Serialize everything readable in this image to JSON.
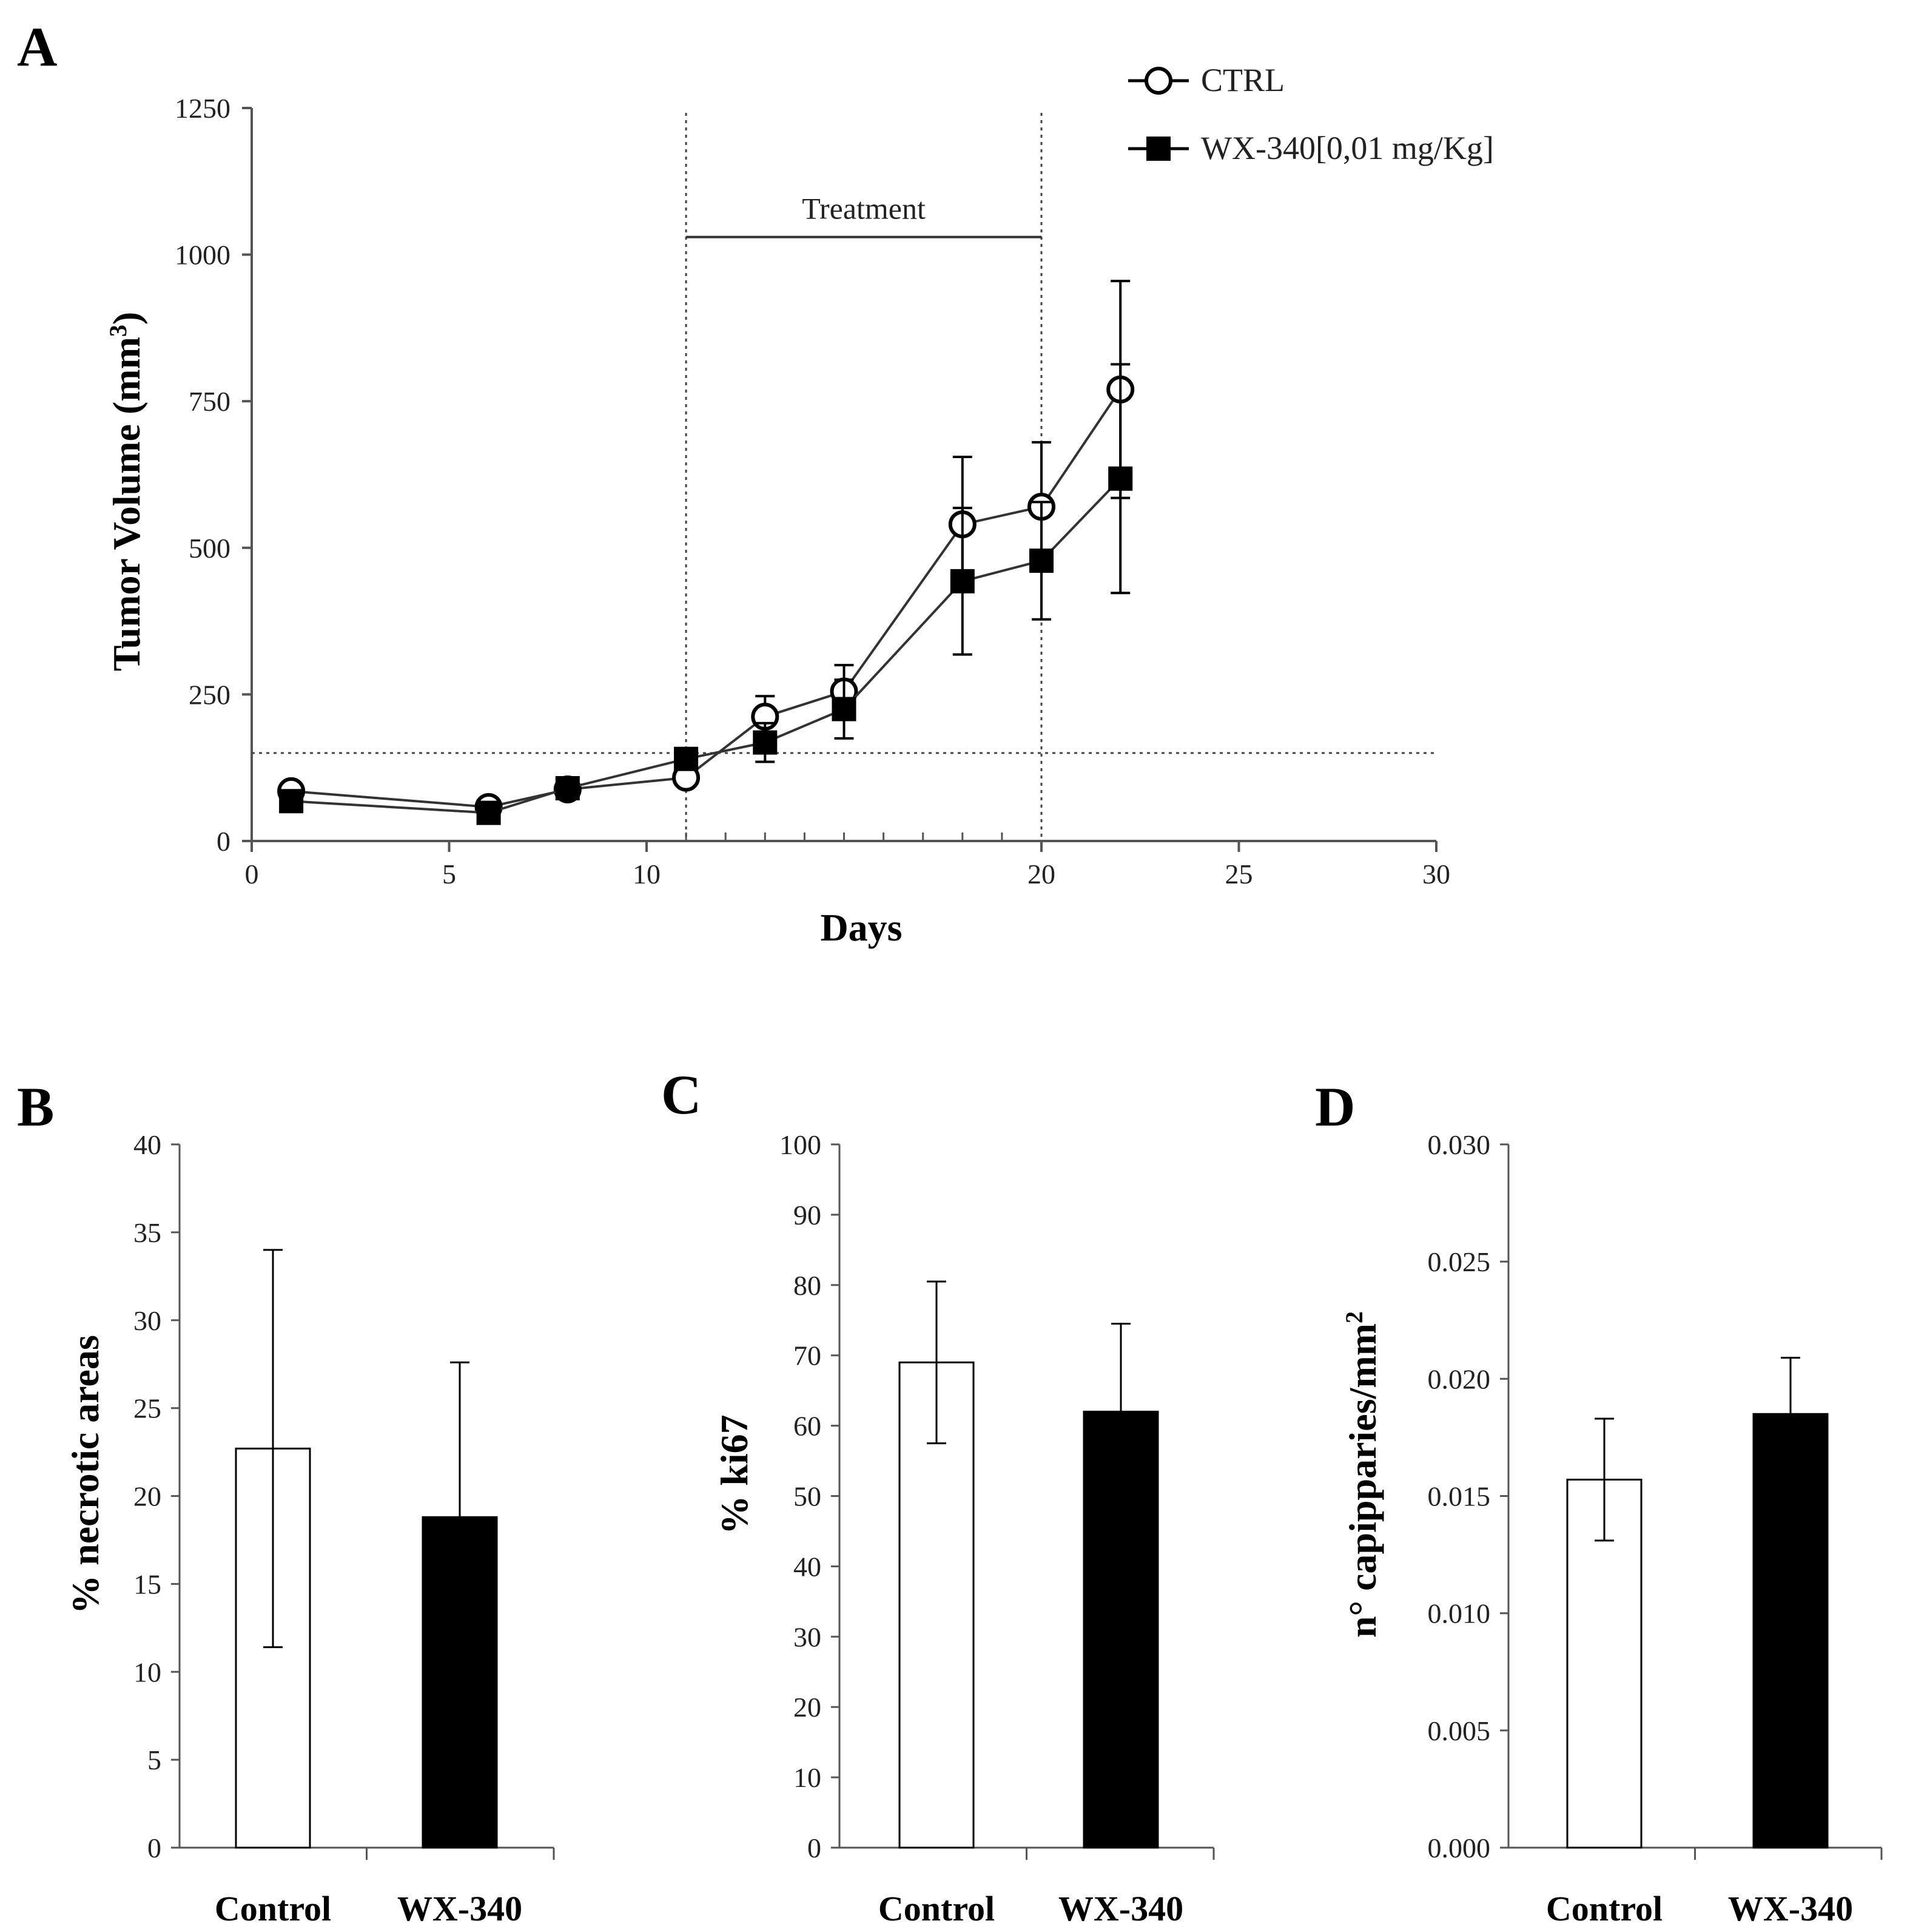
{
  "chart_data": [
    {
      "panel": "A",
      "type": "line",
      "xlabel": "Days",
      "ylabel": "Tumor Volume (mm",
      "ylabel_sup": "3",
      "ylabel_close": ")",
      "xlim": [
        0,
        30
      ],
      "ylim": [
        0,
        1250
      ],
      "xticks": [
        0,
        5,
        10,
        20,
        25,
        30
      ],
      "yticks": [
        0,
        250,
        500,
        750,
        1000,
        1250
      ],
      "minor_xticks": [
        11,
        12,
        13,
        14,
        15,
        16,
        17,
        18,
        19
      ],
      "threshold_y": 150,
      "treatment": {
        "label": "Treatment",
        "start": 11,
        "end": 20,
        "y": 1030
      },
      "series": [
        {
          "name": "CTRL",
          "marker": "open-circle",
          "x": [
            1,
            6,
            8,
            11,
            13,
            15,
            18,
            20,
            22
          ],
          "y": [
            85,
            58,
            88,
            108,
            212,
            255,
            540,
            570,
            770
          ],
          "err": [
            0,
            0,
            0,
            0,
            35,
            45,
            115,
            110,
            185
          ]
        },
        {
          "name": "WX-340[0,01 mg/Kg]",
          "marker": "filled-square",
          "x": [
            1,
            6,
            8,
            11,
            13,
            15,
            18,
            20,
            22
          ],
          "y": [
            68,
            48,
            90,
            140,
            168,
            225,
            443,
            478,
            618
          ],
          "err": [
            0,
            0,
            15,
            0,
            33,
            50,
            125,
            100,
            195
          ]
        }
      ]
    },
    {
      "panel": "B",
      "type": "bar",
      "ylabel": "% necrotic areas",
      "ylim": [
        0,
        40
      ],
      "yticks": [
        0,
        5,
        10,
        15,
        20,
        25,
        30,
        35,
        40
      ],
      "categories": [
        "Control",
        "WX-340"
      ],
      "values": [
        22.7,
        18.8
      ],
      "err": [
        11.3,
        8.8
      ],
      "colors": [
        "#ffffff",
        "#000000"
      ]
    },
    {
      "panel": "C",
      "type": "bar",
      "ylabel": "% ki67",
      "ylim": [
        0,
        100
      ],
      "yticks": [
        0,
        10,
        20,
        30,
        40,
        50,
        60,
        70,
        80,
        90,
        100
      ],
      "categories": [
        "Control",
        "WX-340"
      ],
      "values": [
        69,
        62
      ],
      "err": [
        11.5,
        12.5
      ],
      "colors": [
        "#ffffff",
        "#000000"
      ]
    },
    {
      "panel": "D",
      "type": "bar",
      "ylabel": "n° capipparies/mm",
      "ylabel_sup": "2",
      "ylim": [
        0,
        0.03
      ],
      "yticks": [
        "0.000",
        "0.005",
        "0.010",
        "0.015",
        "0.020",
        "0.025",
        "0.030"
      ],
      "categories": [
        "Control",
        "WX-340"
      ],
      "values": [
        0.0157,
        0.0185
      ],
      "err": [
        0.0026,
        0.0024
      ],
      "colors": [
        "#ffffff",
        "#000000"
      ]
    }
  ]
}
